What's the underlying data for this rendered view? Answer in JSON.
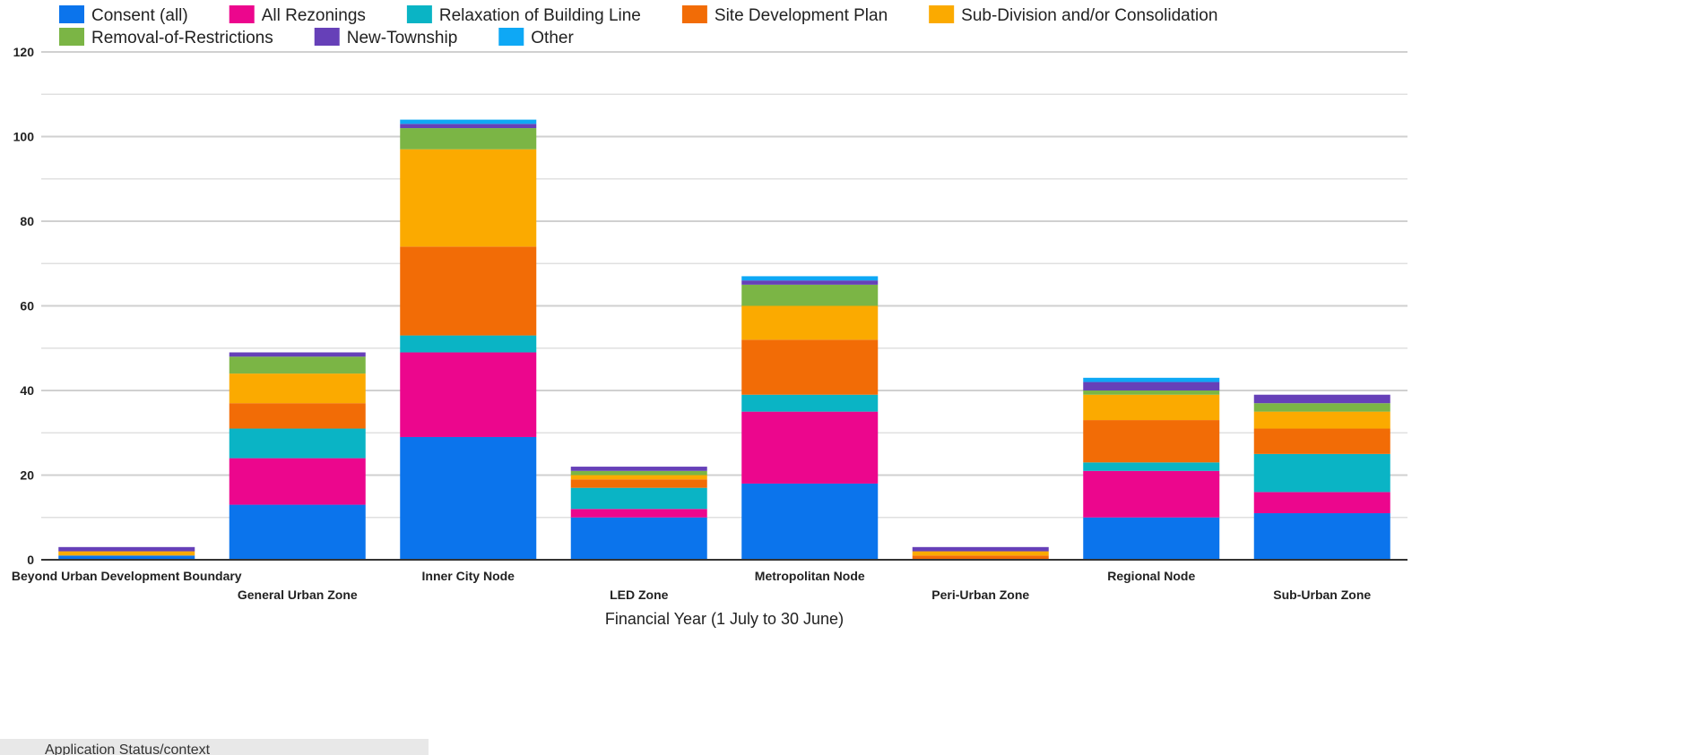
{
  "chart_data": {
    "type": "bar",
    "stacked": true,
    "title": "",
    "xlabel": "Financial Year (1 July to 30 June)",
    "ylabel": "",
    "ylim": [
      0,
      120
    ],
    "yticks": [
      0,
      20,
      40,
      60,
      80,
      100,
      120
    ],
    "grid": true,
    "legend_position": "top",
    "categories": [
      "Beyond Urban Development Boundary",
      "General Urban Zone",
      "Inner City Node",
      "LED Zone",
      "Metropolitan Node",
      "Peri-Urban Zone",
      "Regional Node",
      "Sub-Urban Zone"
    ],
    "series": [
      {
        "name": "Consent (all)",
        "color": "#0b74ec",
        "values": [
          1,
          13,
          29,
          10,
          18,
          0,
          10,
          11
        ]
      },
      {
        "name": "All Rezonings",
        "color": "#ec068d",
        "values": [
          0,
          11,
          20,
          2,
          17,
          0,
          11,
          5
        ]
      },
      {
        "name": "Relaxation of Building Line",
        "color": "#0ab4c5",
        "values": [
          0,
          7,
          4,
          5,
          4,
          0,
          2,
          9
        ]
      },
      {
        "name": "Site Development Plan",
        "color": "#f26c06",
        "values": [
          0,
          6,
          21,
          2,
          13,
          1,
          10,
          6
        ]
      },
      {
        "name": "Sub-Division and/or Consolidation",
        "color": "#fbaa00",
        "values": [
          1,
          7,
          23,
          1,
          8,
          1,
          6,
          4
        ]
      },
      {
        "name": "Removal-of-Restrictions",
        "color": "#7bb545",
        "values": [
          0,
          4,
          5,
          1,
          5,
          0,
          1,
          2
        ]
      },
      {
        "name": "New-Township",
        "color": "#6640b8",
        "values": [
          1,
          1,
          1,
          1,
          1,
          1,
          2,
          2
        ]
      },
      {
        "name": "Other",
        "color": "#0ea8f5",
        "values": [
          0,
          0,
          1,
          0,
          1,
          0,
          1,
          0
        ]
      }
    ]
  },
  "footer": {
    "partial_text": "Application Status/context"
  }
}
